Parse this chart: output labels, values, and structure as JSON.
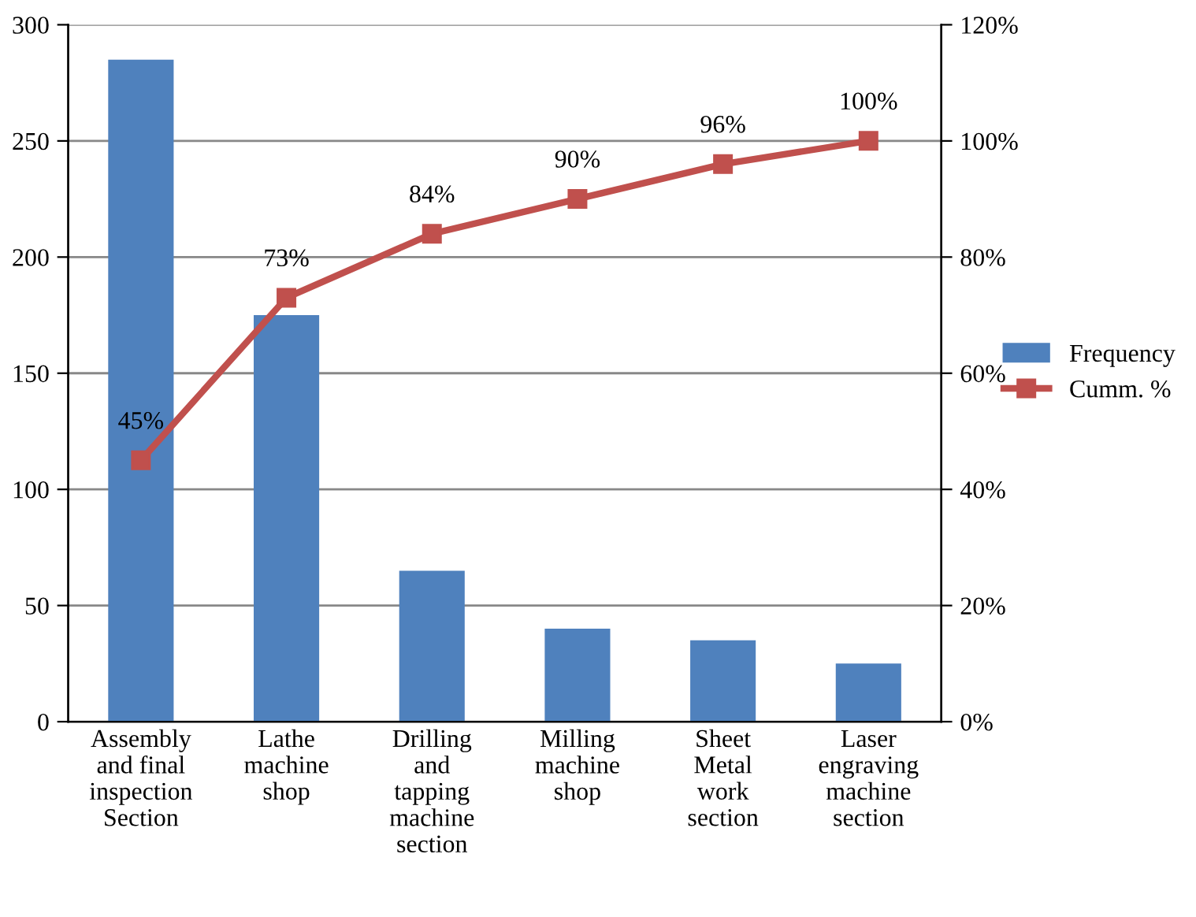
{
  "chart_data": {
    "type": "bar",
    "categories": [
      "Assembly\nand final\ninspection\nSection",
      "Lathe\nmachine\nshop",
      "Drilling\nand\ntapping\nmachine\nsection",
      "Milling\nmachine\nshop",
      "Sheet\nMetal\nwork\nsection",
      "Laser\nengraving\nmachine\nsection"
    ],
    "series": [
      {
        "name": "Frequency",
        "color": "#4f81bd",
        "values": [
          285,
          175,
          65,
          40,
          35,
          25
        ]
      },
      {
        "name": "Cumm. %",
        "type": "line",
        "axis": "y2",
        "color": "#c0504d",
        "marker": "square",
        "values": [
          45,
          73,
          84,
          90,
          96,
          100
        ],
        "value_labels": [
          "45%",
          "73%",
          "84%",
          "90%",
          "96%",
          "100%"
        ]
      }
    ],
    "ylim": [
      0,
      300
    ],
    "yticks": [
      0,
      50,
      100,
      150,
      200,
      250,
      300
    ],
    "y2lim": [
      0,
      120
    ],
    "y2ticks": [
      {
        "value": 0,
        "label": "0%"
      },
      {
        "value": 20,
        "label": "20%"
      },
      {
        "value": 40,
        "label": "40%"
      },
      {
        "value": 60,
        "label": "60%"
      },
      {
        "value": 80,
        "label": "80%"
      },
      {
        "value": 100,
        "label": "100%"
      },
      {
        "value": 120,
        "label": "120%"
      }
    ],
    "grid": "y",
    "legend": "right"
  }
}
